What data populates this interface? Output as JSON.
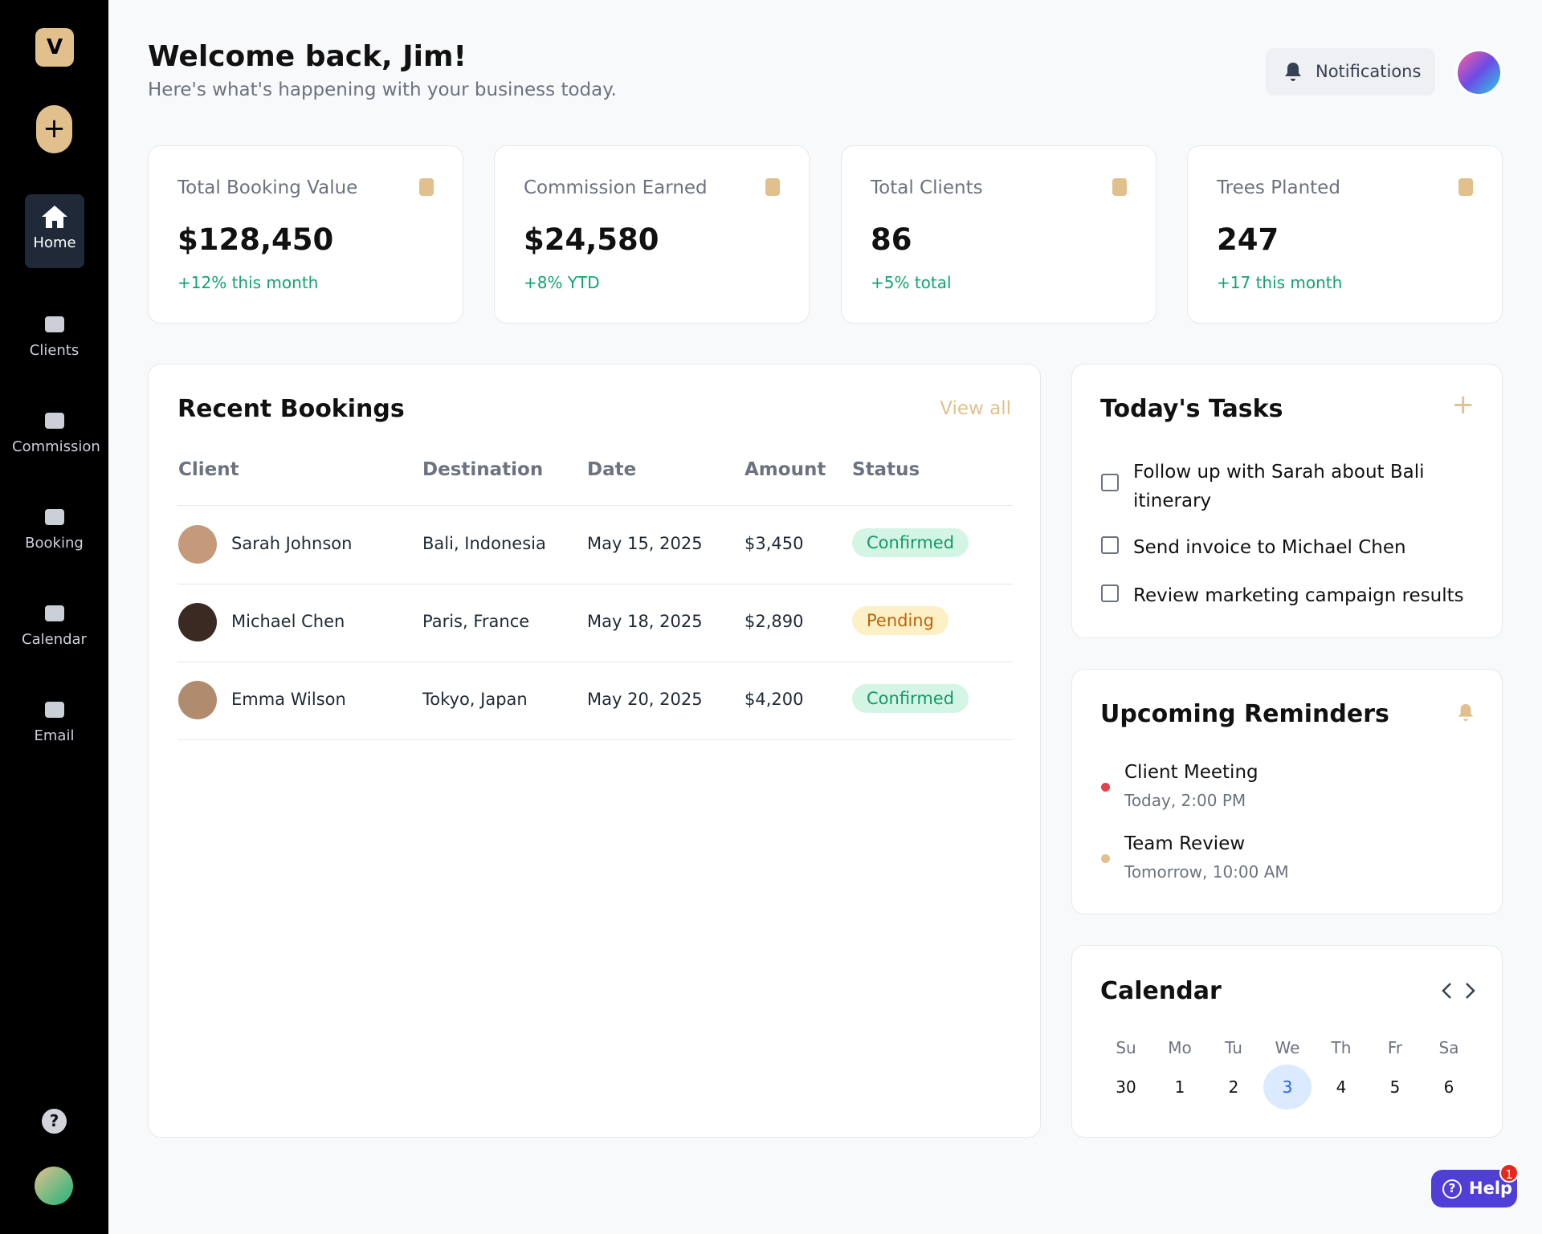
{
  "sidebar": {
    "logo": "V",
    "nav": [
      "Home",
      "Clients",
      "Commission",
      "Booking",
      "Calendar",
      "Email"
    ]
  },
  "header": {
    "title": "Welcome back, Jim!",
    "subtitle": "Here's what's happening with your business today.",
    "notifications": "Notifications"
  },
  "stats": [
    {
      "label": "Total Booking Value",
      "value": "$128,450",
      "change": "+12% this month"
    },
    {
      "label": "Commission Earned",
      "value": "$24,580",
      "change": "+8% YTD"
    },
    {
      "label": "Total Clients",
      "value": "86",
      "change": "+5% total"
    },
    {
      "label": "Trees Planted",
      "value": "247",
      "change": "+17 this month"
    }
  ],
  "bookings": {
    "title": "Recent Bookings",
    "view_all": "View all",
    "columns": [
      "Client",
      "Destination",
      "Date",
      "Amount",
      "Status"
    ],
    "rows": [
      [
        "Sarah Johnson",
        "Bali, Indonesia",
        "May 15, 2025",
        "$3,450",
        "Confirmed"
      ],
      [
        "Michael Chen",
        "Paris, France",
        "May 18, 2025",
        "$2,890",
        "Pending"
      ],
      [
        "Emma Wilson",
        "Tokyo, Japan",
        "May 20, 2025",
        "$4,200",
        "Confirmed"
      ]
    ]
  },
  "tasks": {
    "title": "Today's Tasks",
    "items": [
      "Follow up with Sarah about Bali itinerary",
      "Send invoice to Michael Chen",
      "Review marketing campaign results"
    ]
  },
  "reminders": {
    "title": "Upcoming Reminders",
    "items": [
      {
        "title": "Client Meeting",
        "time": "Today, 2:00 PM"
      },
      {
        "title": "Team Review",
        "time": "Tomorrow, 10:00 AM"
      }
    ]
  },
  "calendar": {
    "title": "Calendar",
    "days": [
      "Su",
      "Mo",
      "Tu",
      "We",
      "Th",
      "Fr",
      "Sa"
    ],
    "dates": [
      "30",
      "1",
      "2",
      "3",
      "4",
      "5",
      "6"
    ]
  },
  "help": {
    "label": "Help",
    "badge": "1"
  }
}
